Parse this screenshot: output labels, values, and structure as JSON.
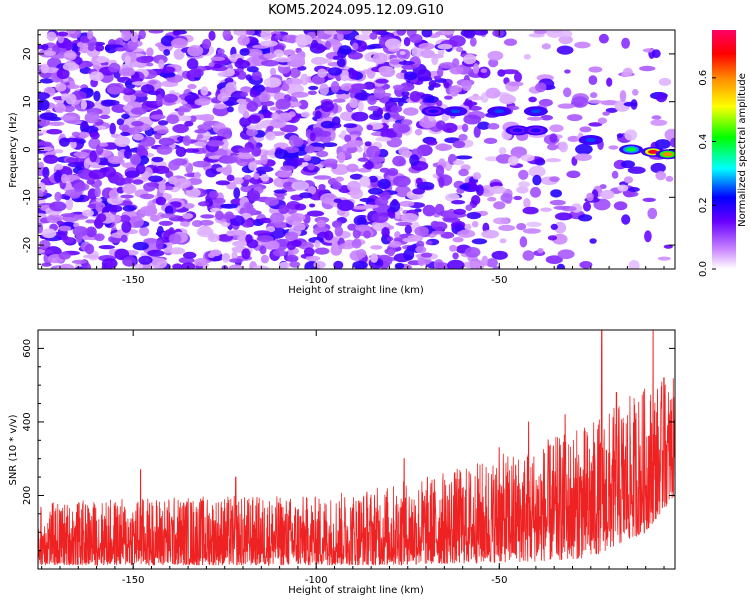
{
  "title": "KOM5.2024.095.12.09.G10",
  "chart_data": [
    {
      "type": "heatmap",
      "xlabel": "Height of straight line (km)",
      "ylabel": "Frequency (Hz)",
      "xlim": [
        -176,
        -2
      ],
      "ylim": [
        -25,
        25
      ],
      "xticks": [
        -150,
        -100,
        -50
      ],
      "yticks": [
        -20,
        -10,
        0,
        10,
        20
      ],
      "colorbar": {
        "label": "Normalized spectral amplitude",
        "range": [
          0,
          0.75
        ],
        "ticks": [
          "0.0",
          "0.2",
          "0.4",
          "0.6"
        ],
        "colormap": [
          "#ffffff",
          "#cc88ff",
          "#6600ff",
          "#0000ff",
          "#00ffff",
          "#00ff00",
          "#ffff00",
          "#ff8800",
          "#ff0000",
          "#ff0066"
        ]
      },
      "features": [
        {
          "x": -68,
          "y": 8,
          "value": 0.2
        },
        {
          "x": -62,
          "y": 8,
          "value": 0.25
        },
        {
          "x": -50,
          "y": 8,
          "value": 0.25
        },
        {
          "x": -40,
          "y": 8,
          "value": 0.25
        },
        {
          "x": -45,
          "y": 4,
          "value": 0.2
        },
        {
          "x": -40,
          "y": 4,
          "value": 0.2
        },
        {
          "x": -25,
          "y": 2,
          "value": 0.25
        },
        {
          "x": -14,
          "y": 0,
          "value": 0.4
        },
        {
          "x": -8,
          "y": -0.5,
          "value": 0.7
        },
        {
          "x": -4,
          "y": -1,
          "value": 0.6
        }
      ]
    },
    {
      "type": "line",
      "xlabel": "Height of straight line (km)",
      "ylabel": "SNR (10 * v/v)",
      "xlim": [
        -176,
        -2
      ],
      "ylim": [
        0,
        650
      ],
      "xticks": [
        -150,
        -100,
        -50
      ],
      "yticks": [
        200,
        400,
        600
      ],
      "series": [
        {
          "color": "#ee2222",
          "envelope": [
            {
              "x": -176,
              "low": 10,
              "high": 180
            },
            {
              "x": -140,
              "low": 10,
              "high": 200
            },
            {
              "x": -100,
              "low": 10,
              "high": 200
            },
            {
              "x": -80,
              "low": 10,
              "high": 230
            },
            {
              "x": -60,
              "low": 15,
              "high": 280
            },
            {
              "x": -40,
              "low": 20,
              "high": 340
            },
            {
              "x": -25,
              "low": 30,
              "high": 400
            },
            {
              "x": -10,
              "low": 100,
              "high": 500
            },
            {
              "x": -2,
              "low": 200,
              "high": 520
            }
          ],
          "peaks": [
            {
              "x": -148,
              "y": 270
            },
            {
              "x": -122,
              "y": 250
            },
            {
              "x": -76,
              "y": 300
            },
            {
              "x": -50,
              "y": 330
            },
            {
              "x": -42,
              "y": 400
            },
            {
              "x": -32,
              "y": 420
            },
            {
              "x": -22,
              "y": 650
            },
            {
              "x": -18,
              "y": 480
            },
            {
              "x": -8,
              "y": 650
            },
            {
              "x": -5,
              "y": 520
            }
          ]
        }
      ]
    }
  ]
}
